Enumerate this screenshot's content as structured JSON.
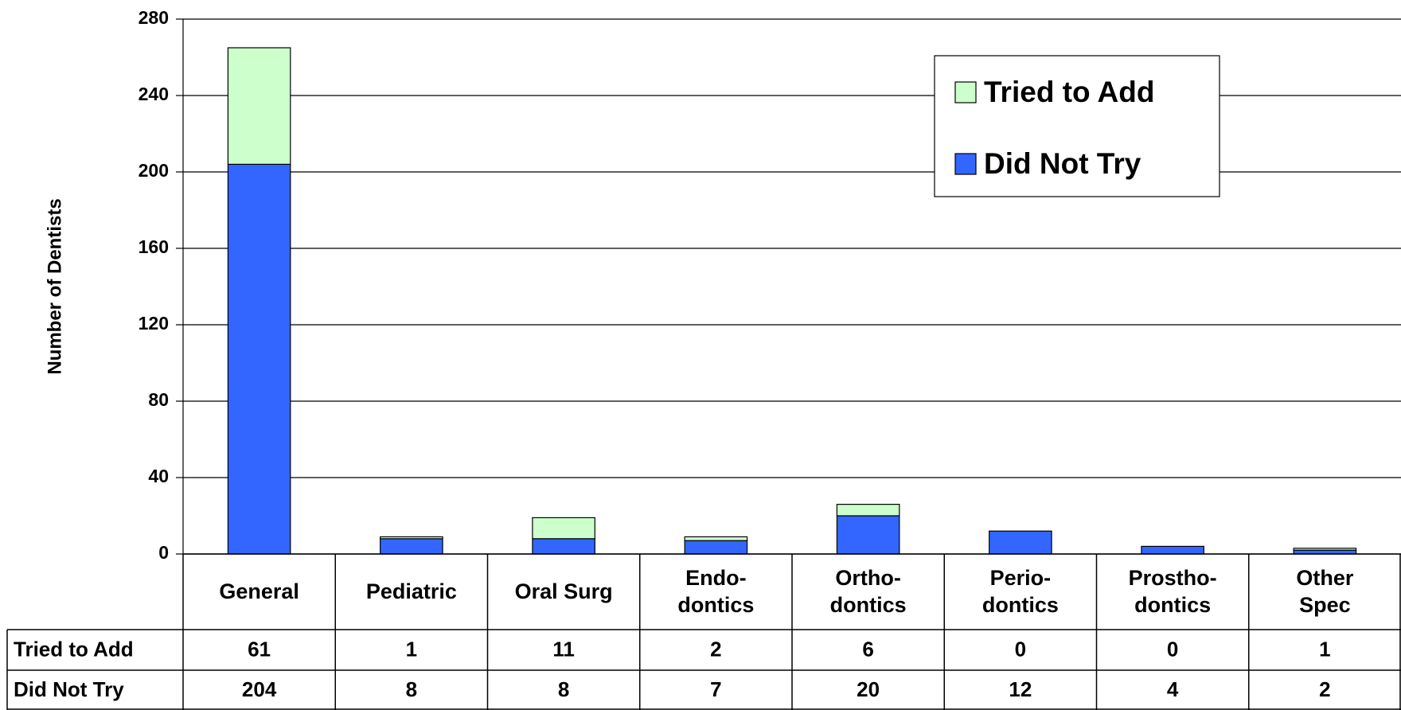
{
  "chart_data": {
    "type": "stacked_bar",
    "y_label": "Number of Dentists",
    "categories": [
      "General",
      "Pediatric",
      "Oral Surg",
      "Endo-\ndontics",
      "Ortho-\ndontics",
      "Perio-\ndontics",
      "Prostho-\ndontics",
      "Other\nSpec"
    ],
    "series": [
      {
        "name": "Tried to Add",
        "color": "#ccffcc",
        "values": [
          61,
          1,
          11,
          2,
          6,
          0,
          0,
          1
        ]
      },
      {
        "name": "Did Not Try",
        "color": "#3366ff",
        "values": [
          204,
          8,
          8,
          7,
          20,
          12,
          4,
          2
        ]
      }
    ],
    "ylim": [
      0,
      280
    ],
    "yticks": [
      0,
      40,
      80,
      120,
      160,
      200,
      240,
      280
    ],
    "grid": true,
    "legend": "upper right",
    "data_table": true
  }
}
